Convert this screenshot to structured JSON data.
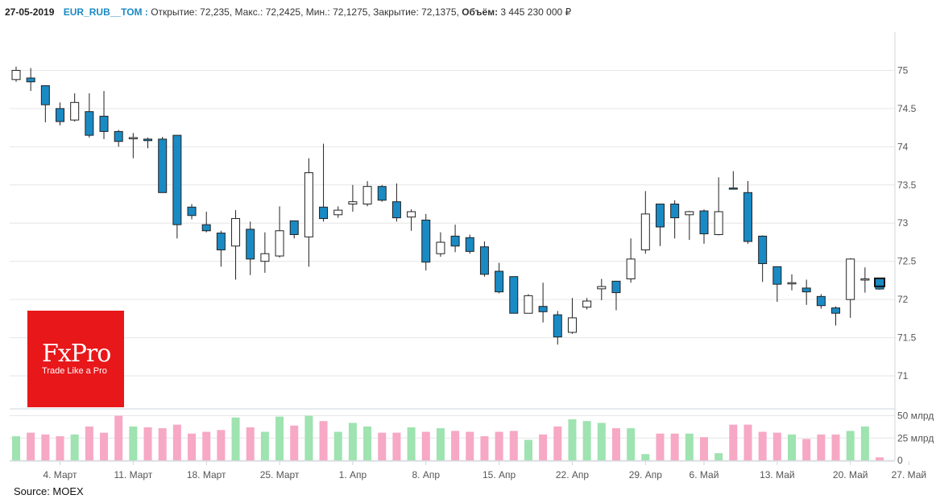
{
  "header": {
    "date": "27-05-2019",
    "symbol": "EUR_RUB__TOM :",
    "ohlc_text": "Открытие: 72,235, Макс.: 72,2425, Мин.: 72,1275, Закрытие: 72,1375,",
    "volume_label": "Объём:",
    "volume_value": "3 445 230 000 ₽"
  },
  "logo": {
    "brand": "FxPro",
    "tagline": "Trade Like a Pro"
  },
  "source": "Source: MOEX",
  "colors": {
    "down": "#1a8ac4",
    "up": "#ffffff",
    "vol_up": "#9ee3b0",
    "vol_down": "#f6a8c4",
    "grid": "#e6e6e6"
  },
  "chart_data": {
    "type": "candlestick",
    "title": "EUR_RUB__TOM",
    "price_ticks": [
      "75",
      "74.5",
      "74",
      "73.5",
      "73",
      "72.5",
      "72",
      "71.5",
      "71"
    ],
    "price_tick_values": [
      75,
      74.5,
      74,
      73.5,
      73,
      72.5,
      72,
      71.5,
      71
    ],
    "volume_ticks": [
      "50 млрд",
      "25 млрд",
      "0"
    ],
    "volume_tick_values": [
      50,
      25,
      0
    ],
    "ylim": [
      70.6,
      75.5
    ],
    "volume_ylim": [
      0,
      55
    ],
    "x_labels": [
      "4. Март",
      "11. Март",
      "18. Март",
      "25. Март",
      "1. Апр",
      "8. Апр",
      "15. Апр",
      "22. Апр",
      "29. Апр",
      "6. Май",
      "13. Май",
      "20. Май",
      "27. Май"
    ],
    "x_label_bar_index": [
      3,
      8,
      13,
      18,
      23,
      28,
      33,
      38,
      43,
      47,
      52,
      57,
      61
    ],
    "candles": [
      {
        "o": 74.88,
        "h": 75.05,
        "l": 74.85,
        "c": 75.0,
        "v": 27
      },
      {
        "o": 74.9,
        "h": 75.03,
        "l": 74.73,
        "c": 74.85,
        "v": 31
      },
      {
        "o": 74.8,
        "h": 74.8,
        "l": 74.32,
        "c": 74.55,
        "v": 29
      },
      {
        "o": 74.5,
        "h": 74.58,
        "l": 74.28,
        "c": 74.33,
        "v": 27
      },
      {
        "o": 74.35,
        "h": 74.7,
        "l": 74.33,
        "c": 74.58,
        "v": 29
      },
      {
        "o": 74.46,
        "h": 74.7,
        "l": 74.12,
        "c": 74.15,
        "v": 38
      },
      {
        "o": 74.4,
        "h": 74.73,
        "l": 74.1,
        "c": 74.2,
        "v": 31
      },
      {
        "o": 74.2,
        "h": 74.22,
        "l": 74.0,
        "c": 74.07,
        "v": 50
      },
      {
        "o": 74.12,
        "h": 74.18,
        "l": 73.85,
        "c": 74.12,
        "v": 38
      },
      {
        "o": 74.1,
        "h": 74.12,
        "l": 73.98,
        "c": 74.08,
        "v": 37
      },
      {
        "o": 74.1,
        "h": 74.13,
        "l": 73.4,
        "c": 73.4,
        "v": 36
      },
      {
        "o": 74.15,
        "h": 74.15,
        "l": 72.8,
        "c": 72.98,
        "v": 40
      },
      {
        "o": 73.21,
        "h": 73.25,
        "l": 73.05,
        "c": 73.1,
        "v": 30
      },
      {
        "o": 72.98,
        "h": 73.15,
        "l": 72.88,
        "c": 72.9,
        "v": 32
      },
      {
        "o": 72.87,
        "h": 72.9,
        "l": 72.43,
        "c": 72.65,
        "v": 34
      },
      {
        "o": 72.7,
        "h": 73.17,
        "l": 72.26,
        "c": 73.06,
        "v": 48
      },
      {
        "o": 72.92,
        "h": 73.02,
        "l": 72.32,
        "c": 72.53,
        "v": 37
      },
      {
        "o": 72.5,
        "h": 72.88,
        "l": 72.35,
        "c": 72.6,
        "v": 32
      },
      {
        "o": 72.57,
        "h": 73.22,
        "l": 72.55,
        "c": 72.9,
        "v": 49
      },
      {
        "o": 73.03,
        "h": 73.03,
        "l": 72.8,
        "c": 72.85,
        "v": 39
      },
      {
        "o": 72.82,
        "h": 73.85,
        "l": 72.43,
        "c": 73.66,
        "v": 50
      },
      {
        "o": 73.21,
        "h": 74.04,
        "l": 73.02,
        "c": 73.06,
        "v": 44
      },
      {
        "o": 73.11,
        "h": 73.22,
        "l": 73.07,
        "c": 73.17,
        "v": 32
      },
      {
        "o": 73.25,
        "h": 73.5,
        "l": 73.15,
        "c": 73.28,
        "v": 42
      },
      {
        "o": 73.25,
        "h": 73.55,
        "l": 73.22,
        "c": 73.48,
        "v": 38
      },
      {
        "o": 73.48,
        "h": 73.5,
        "l": 73.28,
        "c": 73.3,
        "v": 31
      },
      {
        "o": 73.28,
        "h": 73.52,
        "l": 73.02,
        "c": 73.07,
        "v": 31
      },
      {
        "o": 73.08,
        "h": 73.18,
        "l": 72.9,
        "c": 73.15,
        "v": 37
      },
      {
        "o": 73.04,
        "h": 73.12,
        "l": 72.38,
        "c": 72.49,
        "v": 32
      },
      {
        "o": 72.6,
        "h": 72.88,
        "l": 72.56,
        "c": 72.75,
        "v": 36
      },
      {
        "o": 72.83,
        "h": 72.98,
        "l": 72.62,
        "c": 72.7,
        "v": 33
      },
      {
        "o": 72.81,
        "h": 72.85,
        "l": 72.6,
        "c": 72.63,
        "v": 32
      },
      {
        "o": 72.69,
        "h": 72.76,
        "l": 72.3,
        "c": 72.33,
        "v": 27
      },
      {
        "o": 72.37,
        "h": 72.48,
        "l": 72.08,
        "c": 72.1,
        "v": 32
      },
      {
        "o": 72.3,
        "h": 72.3,
        "l": 71.82,
        "c": 71.82,
        "v": 33
      },
      {
        "o": 71.82,
        "h": 72.07,
        "l": 71.82,
        "c": 72.05,
        "v": 23
      },
      {
        "o": 71.91,
        "h": 72.22,
        "l": 71.7,
        "c": 71.84,
        "v": 29
      },
      {
        "o": 71.8,
        "h": 71.85,
        "l": 71.41,
        "c": 71.51,
        "v": 38
      },
      {
        "o": 71.57,
        "h": 72.02,
        "l": 71.55,
        "c": 71.76,
        "v": 46
      },
      {
        "o": 71.9,
        "h": 72.02,
        "l": 71.87,
        "c": 71.98,
        "v": 44
      },
      {
        "o": 72.14,
        "h": 72.27,
        "l": 71.99,
        "c": 72.17,
        "v": 42
      },
      {
        "o": 72.24,
        "h": 72.24,
        "l": 71.86,
        "c": 72.09,
        "v": 36
      },
      {
        "o": 72.27,
        "h": 72.8,
        "l": 72.22,
        "c": 72.53,
        "v": 36
      },
      {
        "o": 72.65,
        "h": 73.42,
        "l": 72.6,
        "c": 73.12,
        "v": 7
      },
      {
        "o": 73.25,
        "h": 73.25,
        "l": 72.7,
        "c": 72.95,
        "v": 30
      },
      {
        "o": 73.25,
        "h": 73.3,
        "l": 72.8,
        "c": 73.07,
        "v": 30
      },
      {
        "o": 73.11,
        "h": 73.16,
        "l": 72.78,
        "c": 73.15,
        "v": 30
      },
      {
        "o": 73.16,
        "h": 73.18,
        "l": 72.73,
        "c": 72.86,
        "v": 26
      },
      {
        "o": 72.85,
        "h": 73.6,
        "l": 72.84,
        "c": 73.15,
        "v": 8
      },
      {
        "o": 73.46,
        "h": 73.68,
        "l": 73.45,
        "c": 73.45,
        "v": 40
      },
      {
        "o": 73.4,
        "h": 73.55,
        "l": 72.73,
        "c": 72.76,
        "v": 40
      },
      {
        "o": 72.83,
        "h": 72.84,
        "l": 72.23,
        "c": 72.47,
        "v": 32
      },
      {
        "o": 72.43,
        "h": 72.43,
        "l": 71.97,
        "c": 72.2,
        "v": 31
      },
      {
        "o": 72.22,
        "h": 72.33,
        "l": 72.12,
        "c": 72.22,
        "v": 29
      },
      {
        "o": 72.15,
        "h": 72.26,
        "l": 71.93,
        "c": 72.1,
        "v": 24
      },
      {
        "o": 72.04,
        "h": 72.07,
        "l": 71.88,
        "c": 71.92,
        "v": 29
      },
      {
        "o": 71.89,
        "h": 71.91,
        "l": 71.66,
        "c": 71.82,
        "v": 29
      },
      {
        "o": 72.0,
        "h": 72.54,
        "l": 71.76,
        "c": 72.53,
        "v": 33
      },
      {
        "o": 72.27,
        "h": 72.42,
        "l": 72.09,
        "c": 72.27,
        "v": 38
      },
      {
        "o": 72.235,
        "h": 72.2425,
        "l": 72.1275,
        "c": 72.1375,
        "v": 3.4
      }
    ]
  }
}
